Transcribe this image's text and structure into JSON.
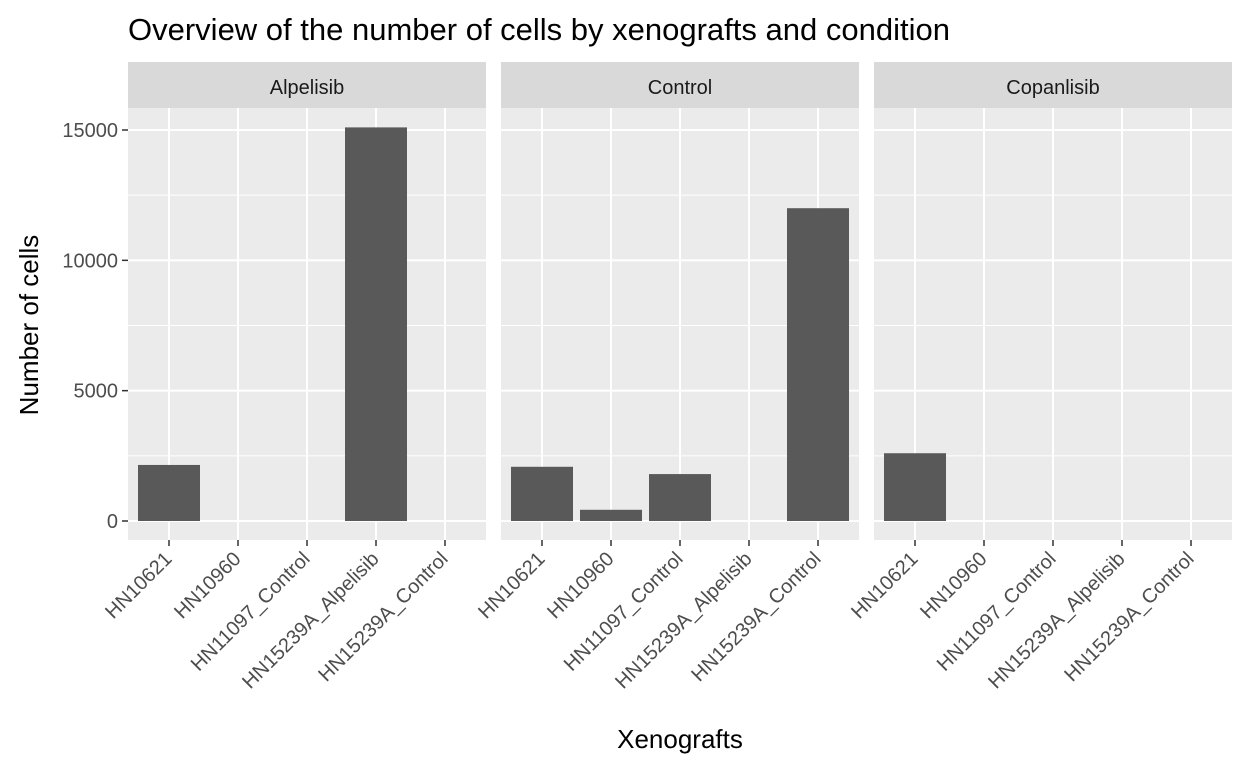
{
  "chart_data": {
    "type": "bar",
    "title": "Overview of the number of cells by xenografts and condition",
    "xlabel": "Xenografts",
    "ylabel": "Number of cells",
    "ylim": [
      0,
      16000
    ],
    "yticks": [
      0,
      5000,
      10000,
      15000
    ],
    "grid": true,
    "legend": "none",
    "categories": [
      "HN10621",
      "HN10960",
      "HN11097_Control",
      "HN15239A_Alpelisib",
      "HN15239A_Control"
    ],
    "facets": [
      {
        "label": "Alpelisib",
        "values": [
          2150,
          0,
          0,
          15100,
          0
        ]
      },
      {
        "label": "Control",
        "values": [
          2080,
          430,
          1800,
          0,
          12000
        ]
      },
      {
        "label": "Copanlisib",
        "values": [
          2600,
          0,
          0,
          0,
          0
        ]
      }
    ]
  },
  "colors": {
    "bar": "#595959",
    "panel": "#ebebeb",
    "strip": "#d9d9d9",
    "grid": "#ffffff",
    "tick": "#333333"
  }
}
